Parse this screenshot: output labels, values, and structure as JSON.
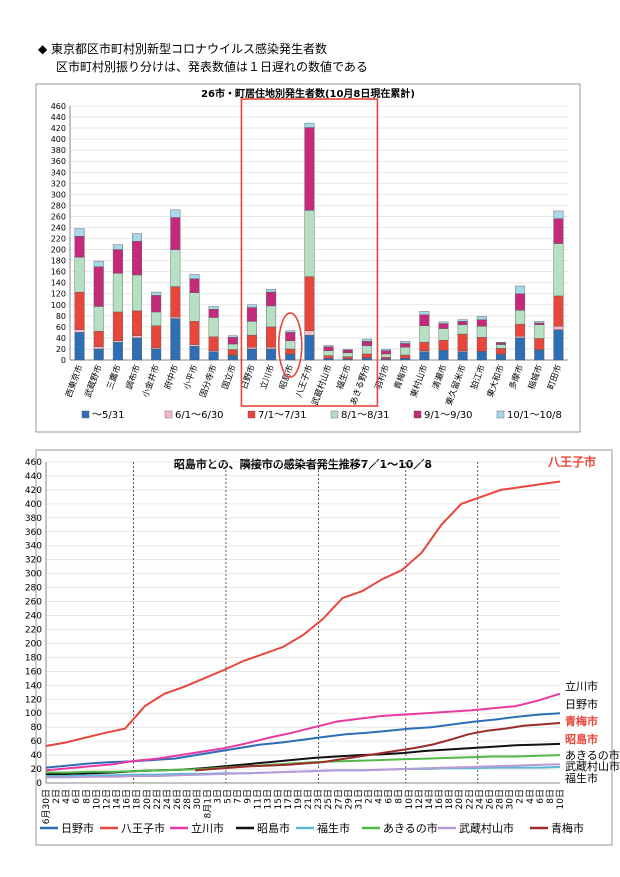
{
  "header": {
    "line1": "◆ 東京都区市町村別新型コロナウイルス感染発生者数",
    "line2": "区市町村別振り分けは、発表数値は１日遅れの数値である"
  },
  "chart_data": [
    {
      "type": "bar",
      "stacked": true,
      "title": "26市・町居住地別発生者数(10月8日現在累計)",
      "ylim": [
        0,
        460
      ],
      "yticks": [
        0,
        20,
        40,
        60,
        80,
        100,
        120,
        140,
        160,
        180,
        200,
        220,
        240,
        260,
        280,
        300,
        320,
        340,
        360,
        380,
        400,
        420,
        440,
        460
      ],
      "categories": [
        "西東京市",
        "武蔵野市",
        "三鷹市",
        "調布市",
        "小金井市",
        "府中市",
        "小平市",
        "国分寺市",
        "国立市",
        "日野市",
        "立川市",
        "昭島市",
        "八王子市",
        "武蔵村山市",
        "福生市",
        "あきる野市",
        "羽村市",
        "青梅市",
        "東村山市",
        "清瀬市",
        "東久留米市",
        "狛江市",
        "東大和市",
        "多摩市",
        "稲城市",
        "町田市"
      ],
      "series": [
        {
          "name": "～5/31",
          "color": "#2e6eb5",
          "values": [
            50,
            20,
            32,
            40,
            20,
            75,
            25,
            15,
            8,
            20,
            20,
            10,
            45,
            3,
            2,
            3,
            2,
            3,
            15,
            17,
            15,
            15,
            10,
            40,
            18,
            55
          ]
        },
        {
          "name": "6/1～6/30",
          "color": "#f4b8c8",
          "values": [
            5,
            4,
            3,
            4,
            2,
            3,
            3,
            2,
            1,
            3,
            3,
            1,
            8,
            0,
            0,
            1,
            0,
            0,
            2,
            1,
            2,
            1,
            1,
            3,
            1,
            6
          ]
        },
        {
          "name": "7/1～7/31",
          "color": "#e8463a",
          "values": [
            68,
            28,
            52,
            45,
            40,
            55,
            42,
            25,
            10,
            22,
            37,
            9,
            98,
            5,
            4,
            7,
            3,
            6,
            15,
            18,
            30,
            25,
            10,
            22,
            20,
            55
          ]
        },
        {
          "name": "8/1～8/31",
          "color": "#b6e0c4",
          "values": [
            63,
            45,
            70,
            65,
            25,
            67,
            52,
            35,
            10,
            25,
            38,
            15,
            120,
            9,
            7,
            15,
            6,
            14,
            30,
            21,
            17,
            20,
            7,
            25,
            25,
            95
          ]
        },
        {
          "name": "9/1～9/30",
          "color": "#c42a79",
          "values": [
            38,
            72,
            43,
            61,
            30,
            58,
            25,
            15,
            12,
            25,
            25,
            15,
            150,
            7,
            5,
            8,
            6,
            7,
            20,
            9,
            6,
            12,
            3,
            30,
            3,
            45
          ]
        },
        {
          "name": "10/1～10/8",
          "color": "#a6d8e8",
          "values": [
            14,
            10,
            9,
            14,
            6,
            14,
            8,
            5,
            3,
            5,
            5,
            3,
            8,
            2,
            1,
            4,
            2,
            4,
            6,
            3,
            3,
            6,
            1,
            14,
            3,
            14
          ]
        }
      ],
      "highlight": {
        "from": "日野市",
        "to": "あきる野市",
        "circled": "昭島市"
      }
    },
    {
      "type": "line",
      "title": "昭島市との、隣接市の感染者発生推移7／1～10／8",
      "ylim": [
        0,
        460
      ],
      "yticks": [
        0,
        20,
        40,
        60,
        80,
        100,
        120,
        140,
        160,
        180,
        200,
        220,
        240,
        260,
        280,
        300,
        320,
        340,
        360,
        380,
        400,
        420,
        440,
        460
      ],
      "x_labels": [
        "6月30日",
        "2日",
        "4日",
        "6日",
        "8日",
        "10日",
        "12日",
        "14日",
        "16日",
        "18日",
        "20日",
        "22日",
        "24日",
        "26日",
        "28日",
        "30日",
        "8月1日",
        "3日",
        "5日",
        "7日",
        "9日",
        "11日",
        "13日",
        "15日",
        "17日",
        "19日",
        "21日",
        "23日",
        "25日",
        "27日",
        "29日",
        "31日",
        "2日",
        "4日",
        "6日",
        "8日",
        "10日",
        "12日",
        "14日",
        "16日",
        "18日",
        "20日",
        "22日",
        "24日",
        "26日",
        "28日",
        "30日",
        "2日",
        "4日",
        "6日",
        "8日",
        "10日"
      ],
      "month_boundaries": [
        "7月1日",
        "8月1日",
        "9月1日",
        "10月1日"
      ],
      "series": [
        {
          "name": "日野市",
          "color": "#2e6eb5",
          "values": [
            22,
            25,
            28,
            30,
            31,
            33,
            35,
            40,
            45,
            50,
            55,
            58,
            62,
            66,
            70,
            72,
            75,
            78,
            80,
            84,
            88,
            91,
            95,
            98,
            100
          ]
        },
        {
          "name": "八王子市",
          "color": "#e8463a",
          "values": [
            53,
            58,
            65,
            72,
            78,
            110,
            128,
            138,
            150,
            162,
            175,
            185,
            195,
            212,
            235,
            265,
            275,
            292,
            305,
            330,
            370,
            400,
            410,
            420,
            424,
            428,
            432
          ]
        },
        {
          "name": "立川市",
          "color": "#e83aa0",
          "values": [
            18,
            21,
            24,
            27,
            32,
            35,
            40,
            45,
            50,
            57,
            65,
            72,
            80,
            88,
            92,
            96,
            98,
            100,
            102,
            104,
            107,
            110,
            118,
            128
          ]
        },
        {
          "name": "昭島市",
          "color": "#111111",
          "values": [
            12,
            13,
            14,
            15,
            17,
            18,
            19,
            21,
            24,
            27,
            30,
            33,
            36,
            38,
            40,
            41,
            43,
            46,
            48,
            50,
            52,
            54,
            55,
            56
          ]
        },
        {
          "name": "福生市",
          "color": "#5bb7d3",
          "values": [
            10,
            10,
            11,
            11,
            12,
            12,
            13,
            13,
            14,
            14,
            15,
            16,
            17,
            18,
            18,
            19,
            20,
            20,
            21,
            21,
            22,
            22,
            22,
            23
          ]
        },
        {
          "name": "あきるの市",
          "color": "#52b848",
          "values": [
            15,
            15,
            16,
            16,
            17,
            18,
            19,
            20,
            22,
            24,
            26,
            28,
            30,
            31,
            32,
            33,
            34,
            35,
            36,
            37,
            38,
            38,
            39,
            40
          ]
        },
        {
          "name": "武蔵村山市",
          "color": "#b89bd6",
          "values": [
            8,
            8,
            9,
            9,
            10,
            10,
            11,
            12,
            13,
            14,
            15,
            16,
            17,
            18,
            18,
            19,
            20,
            21,
            22,
            23,
            24,
            25,
            26,
            27
          ]
        },
        {
          "name": "青梅市",
          "color": "#9c2b2b",
          "values": [
            18,
            20,
            22,
            24,
            25,
            26,
            28,
            30,
            34,
            38,
            42,
            46,
            50,
            55,
            62,
            70,
            75,
            78,
            82,
            84,
            86
          ]
        }
      ],
      "end_labels": [
        {
          "text": "八王子市",
          "color": "#e8463a"
        },
        {
          "text": "立川市",
          "color": "#000000"
        },
        {
          "text": "日野市",
          "color": "#000000"
        },
        {
          "text": "青梅市",
          "color": "#e8463a"
        },
        {
          "text": "昭島市",
          "color": "#e8463a"
        },
        {
          "text": "あきるの市",
          "color": "#000000"
        },
        {
          "text": "武蔵村山市",
          "color": "#000000"
        },
        {
          "text": "福生市",
          "color": "#000000"
        }
      ]
    }
  ]
}
